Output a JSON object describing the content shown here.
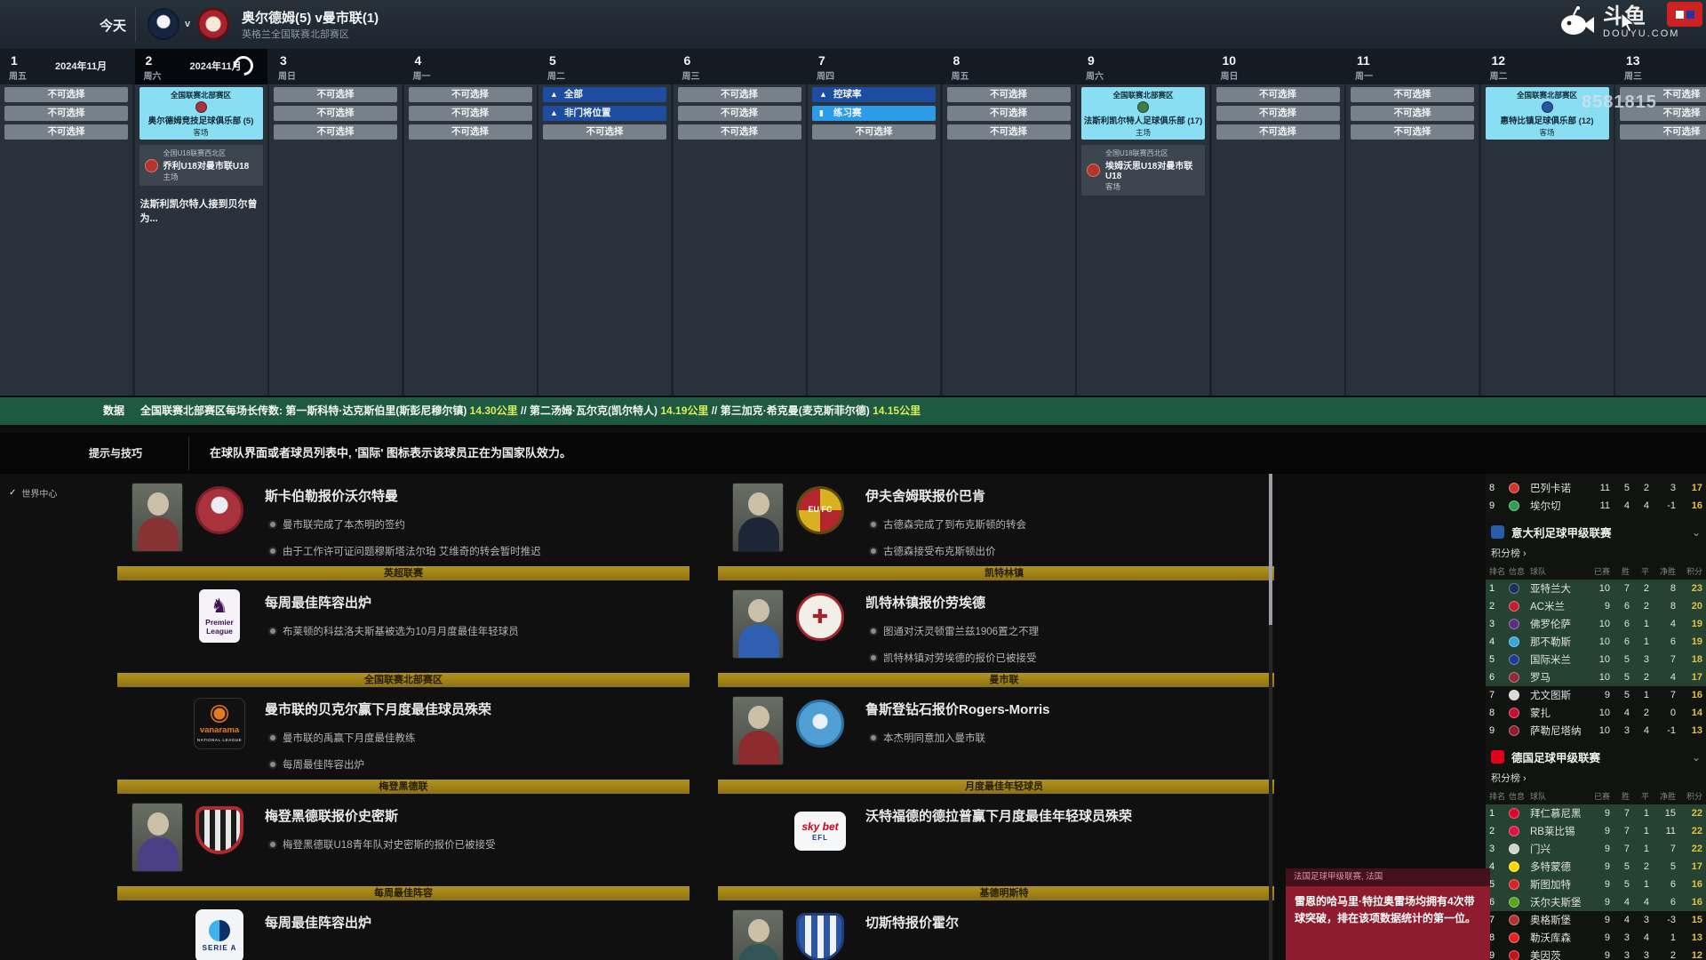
{
  "top_bar": {
    "today": "今天",
    "vs": "v",
    "title": "奥尔德姆(5) v曼市联(1)",
    "subtitle": "英格兰全国联赛北部赛区"
  },
  "calendar": {
    "disabled_label": "不可选择",
    "days": [
      {
        "num": "1",
        "dow": "周五",
        "month": "2024年11月",
        "cells": [
          {
            "type": "disabled"
          },
          {
            "type": "disabled"
          },
          {
            "type": "disabled"
          }
        ]
      },
      {
        "num": "2",
        "dow": "周六",
        "month": "2024年11月",
        "current": true,
        "spinner": true,
        "match": {
          "comp": "全国联赛北部赛区",
          "club": "奥尔德姆竞技足球俱乐部 (5)",
          "venue": "客场",
          "color": "#a8333d"
        },
        "sub": {
          "comp": "全国U18联赛西北区",
          "fixture": "乔利U18对曼市联U18",
          "venue": "主场",
          "color": "#b5342c"
        },
        "note": "法斯利凯尔特人接到贝尔曾为..."
      },
      {
        "num": "3",
        "dow": "周日",
        "cells": [
          {
            "type": "disabled"
          },
          {
            "type": "disabled"
          },
          {
            "type": "disabled"
          }
        ]
      },
      {
        "num": "4",
        "dow": "周一",
        "cells": [
          {
            "type": "disabled"
          },
          {
            "type": "disabled"
          },
          {
            "type": "disabled"
          }
        ]
      },
      {
        "num": "5",
        "dow": "周二",
        "cells": [
          {
            "type": "drill",
            "label": "全部"
          },
          {
            "type": "drill",
            "label": "非门将位置"
          },
          {
            "type": "disabled"
          }
        ]
      },
      {
        "num": "6",
        "dow": "周三",
        "cells": [
          {
            "type": "disabled"
          },
          {
            "type": "disabled"
          },
          {
            "type": "disabled"
          }
        ]
      },
      {
        "num": "7",
        "dow": "周四",
        "cells": [
          {
            "type": "drill",
            "label": "控球率"
          },
          {
            "type": "practice",
            "label": "练习赛"
          },
          {
            "type": "disabled"
          }
        ]
      },
      {
        "num": "8",
        "dow": "周五",
        "cells": [
          {
            "type": "disabled"
          },
          {
            "type": "disabled"
          },
          {
            "type": "disabled"
          }
        ]
      },
      {
        "num": "9",
        "dow": "周六",
        "match": {
          "comp": "全国联赛北部赛区",
          "club": "法斯利凯尔特人足球俱乐部 (17)",
          "venue": "主场",
          "color": "#3f7d44"
        },
        "sub": {
          "comp": "全国U18联赛西北区",
          "fixture": "埃姆沃思U18对曼市联U18",
          "venue": "客场",
          "color": "#b5342c"
        }
      },
      {
        "num": "10",
        "dow": "周日",
        "cells": [
          {
            "type": "disabled"
          },
          {
            "type": "disabled"
          },
          {
            "type": "disabled"
          }
        ]
      },
      {
        "num": "11",
        "dow": "周一",
        "cells": [
          {
            "type": "disabled"
          },
          {
            "type": "disabled"
          },
          {
            "type": "disabled"
          }
        ]
      },
      {
        "num": "12",
        "dow": "周二",
        "match": {
          "comp": "全国联赛北部赛区",
          "club": "惠特比镇足球俱乐部 (12)",
          "venue": "客场",
          "color": "#2855a0"
        }
      },
      {
        "num": "13",
        "dow": "周三",
        "cells": [
          {
            "type": "disabled"
          },
          {
            "type": "disabled"
          },
          {
            "type": "disabled"
          }
        ]
      }
    ]
  },
  "data_bar": {
    "label": "数据",
    "parts": [
      {
        "t": "全国联赛北部赛区每场长传数: 第一斯科特·达克斯伯里(斯彭尼穆尔镇) "
      },
      {
        "t": "14.30公里",
        "hl": true
      },
      {
        "t": " // 第二汤姆·瓦尔克(凯尔特人) "
      },
      {
        "t": "14.19公里",
        "hl": true
      },
      {
        "t": " // 第三加克·希克曼(麦克斯菲尔德) "
      },
      {
        "t": "14.15公里",
        "hl": true
      }
    ]
  },
  "tips_bar": {
    "label": "提示与技巧",
    "text": "在球队界面或者球员列表中, '国际' 图标表示该球员正在为国家队效力。"
  },
  "news": {
    "rail_label": "世界中心",
    "badge_labels": {
      "premier": "Premier League",
      "vanarama": "vanarama",
      "seriea": "SERIE A",
      "skybet": "sky bet",
      "skybet_sub": "EFL",
      "evesham": "EU FC",
      "kettering": "✚",
      "vanarama_sub": "NATIONAL LEAGUE"
    },
    "columns": [
      {
        "items": [
          {
            "kind": "story",
            "photo": "p-red",
            "badge": "scarborough",
            "title": "斯卡伯勒报价沃尔特曼",
            "bullets": [
              "曼市联完成了本杰明的签约",
              "由于工作许可证问题穆斯塔法尔珀 艾维奇的转会暂时推迟"
            ]
          },
          {
            "kind": "band",
            "label": "英超联赛"
          },
          {
            "kind": "story",
            "photo": null,
            "badge": "premier",
            "title": "每周最佳阵容出炉",
            "bullets": [
              "布莱顿的科兹洛夫斯基被选为10月月度最佳年轻球员"
            ]
          },
          {
            "kind": "band",
            "label": "全国联赛北部赛区"
          },
          {
            "kind": "story",
            "photo": null,
            "badge": "vanarama",
            "title": "曼市联的贝克尔赢下月度最佳球员殊荣",
            "bullets": [
              "曼市联的禹赢下月度最佳教练",
              "每周最佳阵容出炉"
            ]
          },
          {
            "kind": "band",
            "label": "梅登黑德联"
          },
          {
            "kind": "story",
            "photo": "p-purple",
            "badge": "maidenhead",
            "title": "梅登黑德联报价史密斯",
            "bullets": [
              "梅登黑德联U18青年队对史密斯的报价已被接受"
            ]
          },
          {
            "kind": "band",
            "label": "每周最佳阵容"
          },
          {
            "kind": "story",
            "photo": null,
            "badge": "seriea",
            "title": "每周最佳阵容出炉",
            "bullets": []
          }
        ]
      },
      {
        "items": [
          {
            "kind": "story",
            "photo": "p-suit",
            "badge": "evesham",
            "title": "伊夫舍姆联报价巴肯",
            "bullets": [
              "古德森完成了到布克斯顿的转会",
              "古德森接受布克斯顿出价"
            ]
          },
          {
            "kind": "band",
            "label": "凯特林镇"
          },
          {
            "kind": "story",
            "photo": "p-blue",
            "badge": "kettering",
            "title": "凯特林镇报价劳埃德",
            "bullets": [
              "图通对沃灵顿雷兰兹1906置之不理",
              "凯特林镇对劳埃德的报价已被接受"
            ]
          },
          {
            "kind": "band",
            "label": "曼市联"
          },
          {
            "kind": "story",
            "photo": "p-dark",
            "badge": "rushden",
            "title": "鲁斯登钻石报价Rogers-Morris",
            "bullets": [
              "本杰明同意加入曼市联"
            ]
          },
          {
            "kind": "band",
            "label": "月度最佳年轻球员"
          },
          {
            "kind": "story",
            "photo": null,
            "badge": "skybet",
            "title": "沃特福德的德拉普赢下月度最佳年轻球员殊荣",
            "bullets": []
          },
          {
            "kind": "band",
            "label": "基德明斯特"
          },
          {
            "kind": "story",
            "photo": "p-young",
            "badge": "chester",
            "title": "切斯特报价霍尔",
            "bullets": []
          }
        ]
      }
    ]
  },
  "tables": {
    "headers": [
      "排名",
      "信息",
      "球队",
      "已赛",
      "胜",
      "平",
      "净胜",
      "积分"
    ],
    "link_label": "积分榜",
    "spill_rows": [
      [
        "8",
        "巴列卡诺",
        "11",
        "5",
        "2",
        "3",
        "17",
        false,
        "#d0352c"
      ],
      [
        "9",
        "埃尔切",
        "11",
        "4",
        "4",
        "-1",
        "16",
        false,
        "#2e9e4f"
      ]
    ],
    "sections": [
      {
        "title": "意大利足球甲级联赛",
        "badge_color": "#2a5caa",
        "rows": [
          [
            "1",
            "亚特兰大",
            "10",
            "7",
            "2",
            "8",
            "23",
            true,
            "#1b2f5e"
          ],
          [
            "2",
            "AC米兰",
            "9",
            "6",
            "2",
            "8",
            "20",
            true,
            "#c01f2f"
          ],
          [
            "3",
            "佛罗伦萨",
            "10",
            "6",
            "1",
            "4",
            "19",
            true,
            "#5a2d82"
          ],
          [
            "4",
            "那不勒斯",
            "10",
            "6",
            "1",
            "6",
            "19",
            true,
            "#37a6dc"
          ],
          [
            "5",
            "国际米兰",
            "10",
            "5",
            "3",
            "7",
            "18",
            true,
            "#1d3c8f"
          ],
          [
            "6",
            "罗马",
            "10",
            "5",
            "2",
            "4",
            "17",
            true,
            "#8e2b3b"
          ],
          [
            "7",
            "尤文图斯",
            "9",
            "5",
            "1",
            "7",
            "16",
            false,
            "#d9d9d9"
          ],
          [
            "8",
            "蒙扎",
            "10",
            "4",
            "2",
            "0",
            "14",
            false,
            "#c8102e"
          ],
          [
            "9",
            "萨勒尼塔纳",
            "10",
            "3",
            "4",
            "-1",
            "13",
            false,
            "#8f1d2c"
          ]
        ]
      },
      {
        "title": "德国足球甲级联赛",
        "badge_color": "#e2001a",
        "rows": [
          [
            "1",
            "拜仁慕尼黑",
            "9",
            "7",
            "1",
            "15",
            "22",
            true,
            "#dc052d"
          ],
          [
            "2",
            "RB莱比锡",
            "9",
            "7",
            "1",
            "11",
            "22",
            true,
            "#dd1341"
          ],
          [
            "3",
            "门兴",
            "9",
            "7",
            "1",
            "7",
            "22",
            true,
            "#cfd4d1"
          ],
          [
            "4",
            "多特蒙德",
            "9",
            "5",
            "2",
            "5",
            "17",
            true,
            "#ffd900"
          ],
          [
            "5",
            "斯图加特",
            "9",
            "5",
            "1",
            "6",
            "16",
            true,
            "#d8232a"
          ],
          [
            "6",
            "沃尔夫斯堡",
            "9",
            "4",
            "4",
            "6",
            "16",
            true,
            "#58a618"
          ],
          [
            "7",
            "奥格斯堡",
            "9",
            "4",
            "3",
            "-3",
            "15",
            false,
            "#b0342e"
          ],
          [
            "8",
            "勒沃库森",
            "9",
            "3",
            "4",
            "1",
            "13",
            false,
            "#e32221"
          ],
          [
            "9",
            "美因茨",
            "9",
            "3",
            "3",
            "2",
            "12",
            false,
            "#c3141e"
          ]
        ]
      }
    ]
  },
  "french_overlay": {
    "title": "法国足球甲级联赛, 法国",
    "body": "雷恩的哈马里·特拉奥雷场均拥有4次带球突破，排在该项数据统计的第一位。"
  },
  "watermark": {
    "brand": "斗鱼",
    "site": "DOUYU.COM",
    "uid": "8581815"
  }
}
